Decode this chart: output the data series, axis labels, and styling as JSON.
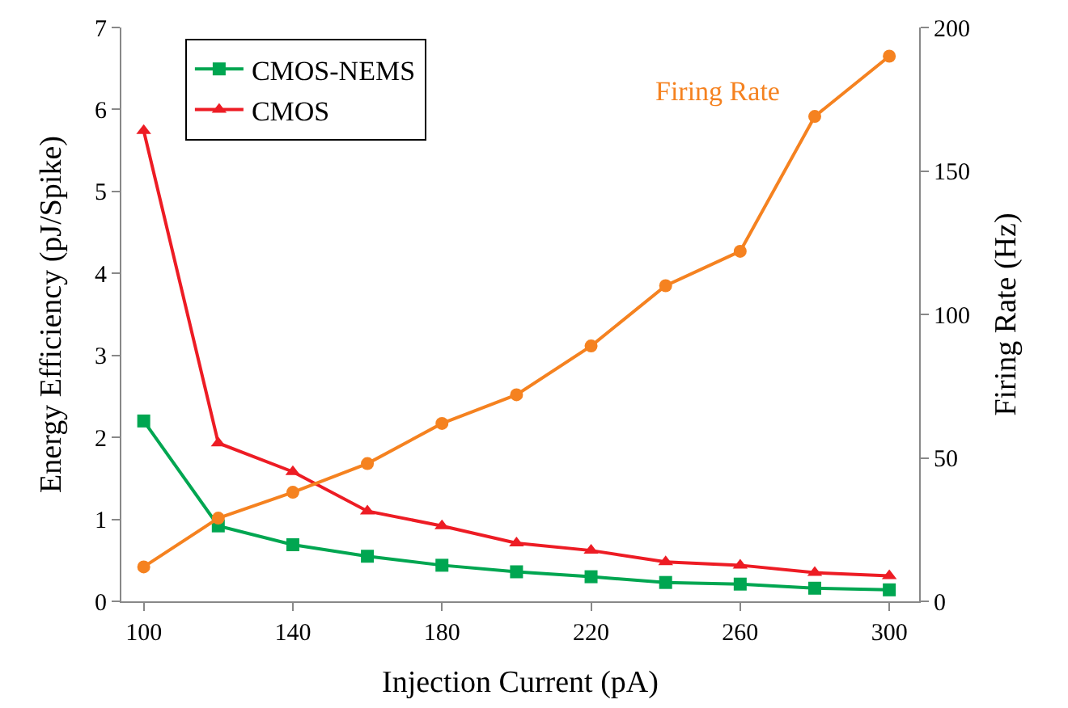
{
  "chart_data": {
    "type": "line",
    "xlabel": "Injection Current (pA)",
    "ylabel": "Energy Efficiency (pJ/Spike)",
    "y2label": "Firing Rate (Hz)",
    "x": [
      100,
      120,
      140,
      160,
      180,
      200,
      220,
      240,
      260,
      280,
      300
    ],
    "series": [
      {
        "name": "CMOS-NEMS",
        "color": "#00a651",
        "marker": "square",
        "values": [
          2.2,
          0.92,
          0.69,
          0.55,
          0.44,
          0.36,
          0.3,
          0.23,
          0.21,
          0.16,
          0.14
        ]
      },
      {
        "name": "CMOS",
        "color": "#ed1c24",
        "marker": "triangle",
        "values": [
          5.74,
          1.93,
          1.58,
          1.1,
          0.92,
          0.71,
          0.62,
          0.48,
          0.44,
          0.35,
          0.31
        ]
      },
      {
        "name": "Firing Rate",
        "color": "#f58220",
        "marker": "circle",
        "axis": "y2",
        "values": [
          12,
          29,
          38,
          48,
          62,
          72,
          89,
          110,
          122,
          169,
          190
        ]
      }
    ],
    "xlim": [
      94,
      308
    ],
    "xticks": [
      100,
      140,
      180,
      220,
      260,
      300
    ],
    "ylim": [
      0,
      7
    ],
    "yticks": [
      0,
      1,
      2,
      3,
      4,
      5,
      6,
      7
    ],
    "y2lim": [
      0,
      200
    ],
    "y2ticks": [
      0,
      50,
      100,
      150,
      200
    ],
    "legend": "top left"
  }
}
